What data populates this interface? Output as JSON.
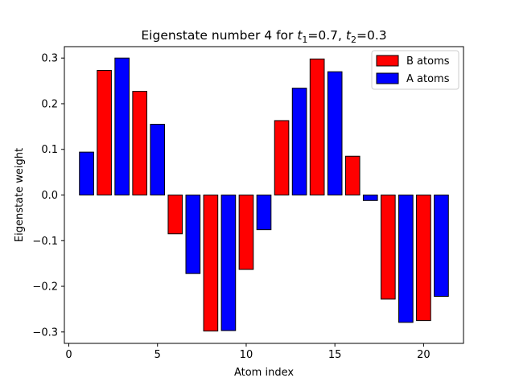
{
  "chart_data": {
    "type": "bar",
    "title": {
      "prefix": "Eigenstate number 4 for ",
      "t1_symbol": "t",
      "t1_sub": "1",
      "t1_value": "=0.7, ",
      "t2_symbol": "t",
      "t2_sub": "2",
      "t2_value": "=0.3"
    },
    "xlabel": "Atom index",
    "ylabel": "Eigenstate weight",
    "xlim": [
      -0.25,
      22.25
    ],
    "ylim": [
      -0.325,
      0.325
    ],
    "xticks": [
      0,
      5,
      10,
      15,
      20
    ],
    "yticks": [
      -0.3,
      -0.2,
      -0.1,
      0.0,
      0.1,
      0.2,
      0.3
    ],
    "ytick_labels": [
      "−0.3",
      "−0.2",
      "−0.1",
      "0.0",
      "0.1",
      "0.2",
      "0.3"
    ],
    "legend_position": "top-right",
    "series": [
      {
        "name": "B atoms",
        "color": "#ff0000",
        "x": [
          2,
          4,
          6,
          8,
          10,
          12,
          14,
          16,
          18,
          20
        ],
        "values": [
          0.273,
          0.227,
          -0.085,
          -0.298,
          -0.163,
          0.163,
          0.298,
          0.085,
          -0.228,
          -0.275
        ]
      },
      {
        "name": "A atoms",
        "color": "#0000ff",
        "x": [
          1,
          3,
          5,
          7,
          9,
          11,
          13,
          15,
          17,
          19,
          21
        ],
        "values": [
          0.094,
          0.3,
          0.155,
          -0.172,
          -0.297,
          -0.076,
          0.234,
          0.27,
          -0.012,
          -0.279,
          -0.222
        ]
      }
    ]
  }
}
